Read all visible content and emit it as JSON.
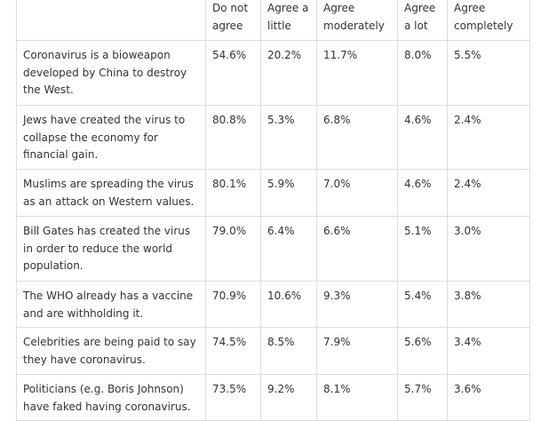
{
  "table": {
    "header": [
      "Do not agree",
      "Agree a little",
      "Agree moderately",
      "Agree a lot",
      "Agree completely"
    ],
    "rows": [
      [
        "Coronavirus is a bioweapon developed by China to destroy the West.",
        "54.6%",
        "20.2%",
        "11.7%",
        "8.0%",
        "5.5%"
      ],
      [
        "Jews have created the virus to collapse the economy for financial gain.",
        "80.8%",
        "5.3%",
        "6.8%",
        "4.6%",
        "2.4%"
      ],
      [
        "Muslims are spreading the virus as an attack on Western values.",
        "80.1%",
        "5.9%",
        "7.0%",
        "4.6%",
        "2.4%"
      ],
      [
        "Bill Gates has created the virus in order to reduce the world population.",
        "79.0%",
        "6.4%",
        "6.6%",
        "5.1%",
        "3.0%"
      ],
      [
        "The WHO already has a vaccine and are withholding it.",
        "70.9%",
        "10.6%",
        "9.3%",
        "5.4%",
        "3.8%"
      ],
      [
        "Celebrities are being paid to say they have coronavirus.",
        "74.5%",
        "8.5%",
        "7.9%",
        "5.6%",
        "3.4%"
      ],
      [
        "Politicians (e.g. Boris Johnson) have faked having coronavirus.",
        "73.5%",
        "9.2%",
        "8.1%",
        "5.7%",
        "3.6%"
      ]
    ]
  }
}
